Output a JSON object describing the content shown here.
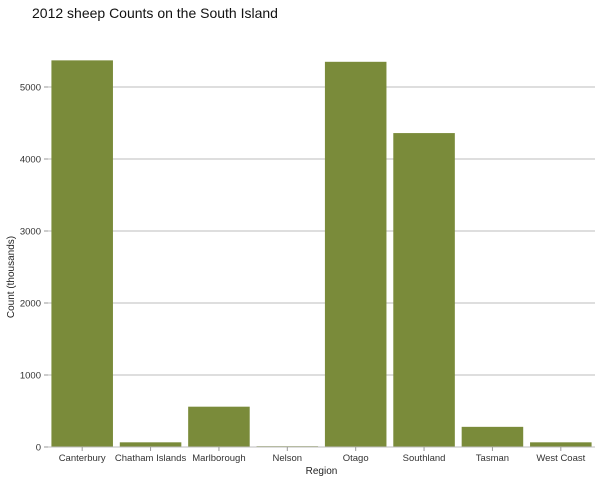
{
  "chart_data": {
    "type": "bar",
    "title": "2012 sheep Counts on the South Island",
    "xlabel": "Region",
    "ylabel": "Count (thousands)",
    "categories": [
      "Canterbury",
      "Chatham Islands",
      "Marlborough",
      "Nelson",
      "Otago",
      "Southland",
      "Tasman",
      "West Coast"
    ],
    "values": [
      5370,
      65,
      560,
      10,
      5350,
      4360,
      280,
      65
    ],
    "ylim": [
      0,
      5500
    ],
    "yticks": [
      0,
      1000,
      2000,
      3000,
      4000,
      5000
    ],
    "ytick_labels": [
      "0",
      "1000",
      "2000",
      "3000",
      "4000",
      "5000"
    ],
    "grid": "horizontal",
    "bar_color": "#7a8b3a",
    "grid_color": "#bdbdbd"
  }
}
